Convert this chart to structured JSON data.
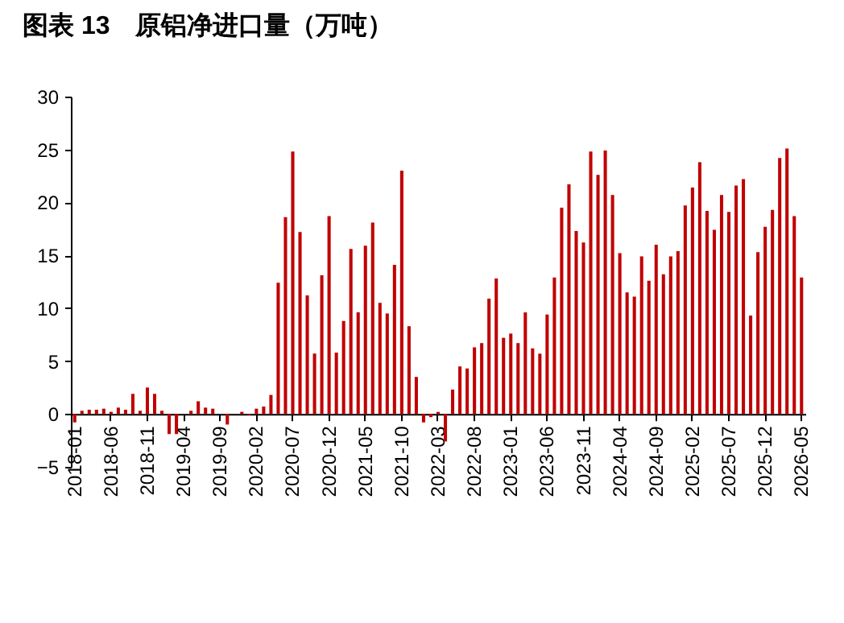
{
  "chart_data": {
    "type": "bar",
    "title": "图表 13　原铝净进口量（万吨）",
    "categories": [
      "2018-01",
      null,
      null,
      null,
      null,
      "2018-06",
      null,
      null,
      null,
      null,
      "2018-11",
      null,
      null,
      null,
      null,
      "2019-04",
      null,
      null,
      null,
      null,
      "2019-09",
      null,
      null,
      null,
      null,
      "2020-02",
      null,
      null,
      null,
      null,
      "2020-07",
      null,
      null,
      null,
      null,
      "2020-12",
      null,
      null,
      null,
      null,
      "2021-05",
      null,
      null,
      null,
      null,
      "2021-10",
      null,
      null,
      null,
      null,
      "2022-03",
      null,
      null,
      null,
      null,
      "2022-08",
      null,
      null,
      null,
      null,
      "2023-01",
      null,
      null,
      null,
      null,
      "2023-06",
      null,
      null,
      null,
      null,
      "2023-11",
      null,
      null,
      null,
      null,
      "2024-04",
      null,
      null,
      null,
      null,
      "2024-09",
      null,
      null,
      null,
      null,
      "2025-02",
      null,
      null,
      null,
      null,
      "2025-07",
      null,
      null,
      null,
      null,
      "2025-12",
      null,
      null,
      null,
      null,
      "2026-05"
    ],
    "series": [
      {
        "color": "#c00000",
        "values": [
          -0.8,
          0.3,
          0.4,
          0.4,
          0.5,
          0.2,
          0.6,
          0.4,
          1.9,
          0.3,
          2.5,
          1.9,
          0.3,
          -1.9,
          -1.9,
          0,
          0.3,
          1.2,
          0.6,
          0.5,
          0,
          -1.0,
          0,
          0.2,
          -0.1,
          0.5,
          0.7,
          1.8,
          12.4,
          18.6,
          24.8,
          17.2,
          11.2,
          5.7,
          13.1,
          18.7,
          5.8,
          8.8,
          15.6,
          9.6,
          15.9,
          18.1,
          10.5,
          9.5,
          14.1,
          23.0,
          8.3,
          3.5,
          -0.8,
          -0.3,
          0.2,
          -2.6,
          2.3,
          4.5,
          4.3,
          6.3,
          6.7,
          10.9,
          12.8,
          7.2,
          7.6,
          6.7,
          9.6,
          6.2,
          5.7,
          9.4,
          12.9,
          19.5,
          21.7,
          17.3,
          16.2,
          24.8,
          22.6,
          24.9,
          20.7,
          15.2,
          11.5,
          11.1,
          14.9,
          12.6,
          16.0,
          13.2,
          14.9,
          15.4,
          19.7,
          21.4,
          23.8,
          19.2,
          17.4,
          20.7,
          19.1,
          21.6,
          22.2,
          9.3,
          15.3,
          17.7,
          19.3,
          24.2,
          25.1,
          18.7,
          12.9
        ]
      }
    ],
    "ylim": [
      -5,
      30
    ],
    "yticks": [
      -5,
      0,
      5,
      10,
      15,
      20,
      25,
      30
    ],
    "grid": false,
    "legend": false
  }
}
